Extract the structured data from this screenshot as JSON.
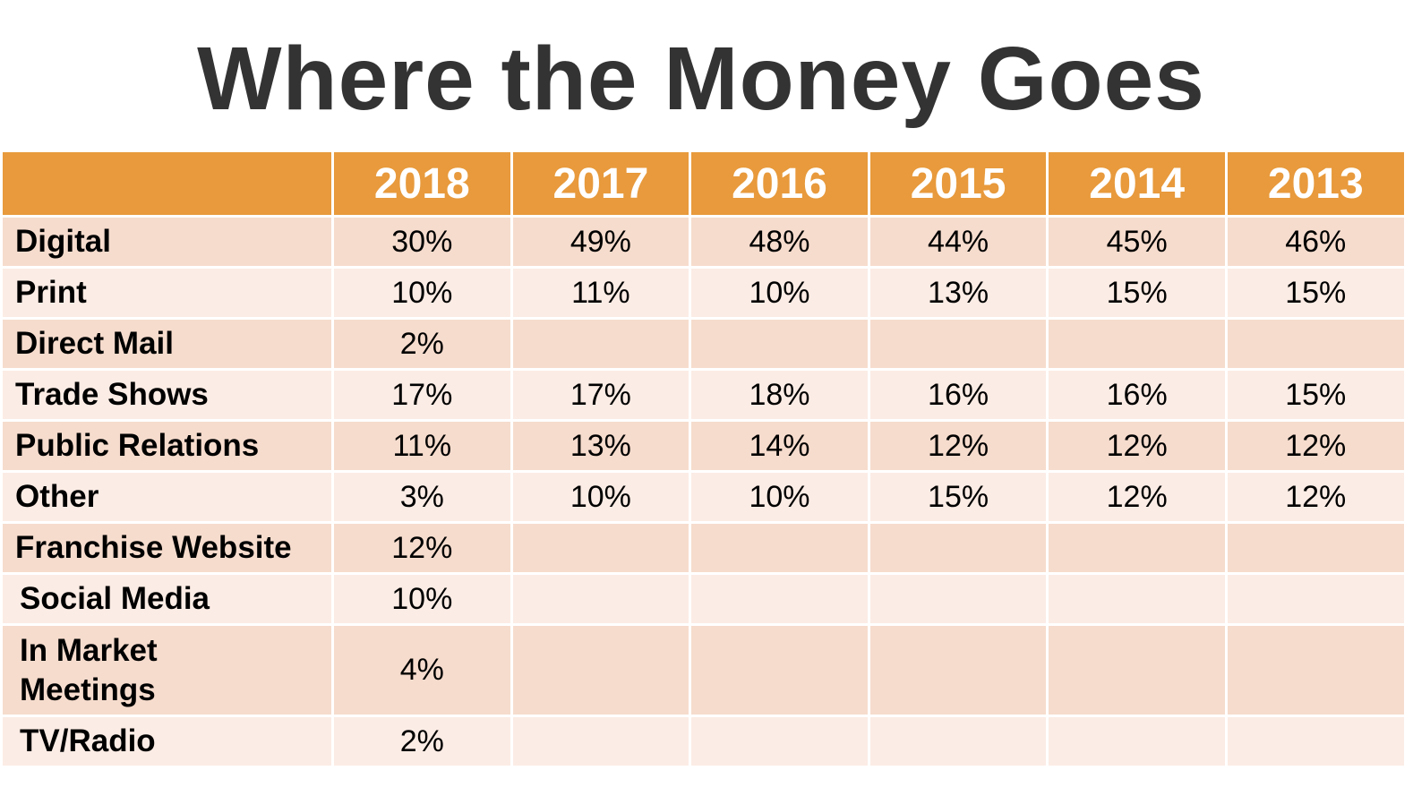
{
  "title": "Where the Money Goes",
  "colors": {
    "header_background": "#e89a3c",
    "header_text": "#ffffff",
    "row_dark": "#f6dccd",
    "row_light": "#fbece5",
    "title_text": "#333333"
  },
  "table": {
    "corner_label": "",
    "years": [
      "2018",
      "2017",
      "2016",
      "2015",
      "2014",
      "2013"
    ],
    "rows": [
      {
        "label": "Digital",
        "values": [
          "30%",
          "49%",
          "48%",
          "44%",
          "45%",
          "46%"
        ]
      },
      {
        "label": "Print",
        "values": [
          "10%",
          "11%",
          "10%",
          "13%",
          "15%",
          "15%"
        ]
      },
      {
        "label": "Direct Mail",
        "values": [
          "2%",
          "",
          "",
          "",
          "",
          ""
        ]
      },
      {
        "label": "Trade Shows",
        "values": [
          "17%",
          "17%",
          "18%",
          "16%",
          "16%",
          "15%"
        ]
      },
      {
        "label": "Public Relations",
        "values": [
          "11%",
          "13%",
          "14%",
          "12%",
          "12%",
          "12%"
        ]
      },
      {
        "label": "Other",
        "values": [
          "3%",
          "10%",
          "10%",
          "15%",
          "12%",
          "12%"
        ]
      },
      {
        "label": "Franchise Website",
        "values": [
          "12%",
          "",
          "",
          "",
          "",
          ""
        ]
      },
      {
        "label": "Social Media",
        "values": [
          "10%",
          "",
          "",
          "",
          "",
          ""
        ]
      },
      {
        "label": "In Market Meetings",
        "values": [
          "4%",
          "",
          "",
          "",
          "",
          ""
        ]
      },
      {
        "label": "TV/Radio",
        "values": [
          "2%",
          "",
          "",
          "",
          "",
          ""
        ]
      }
    ]
  }
}
